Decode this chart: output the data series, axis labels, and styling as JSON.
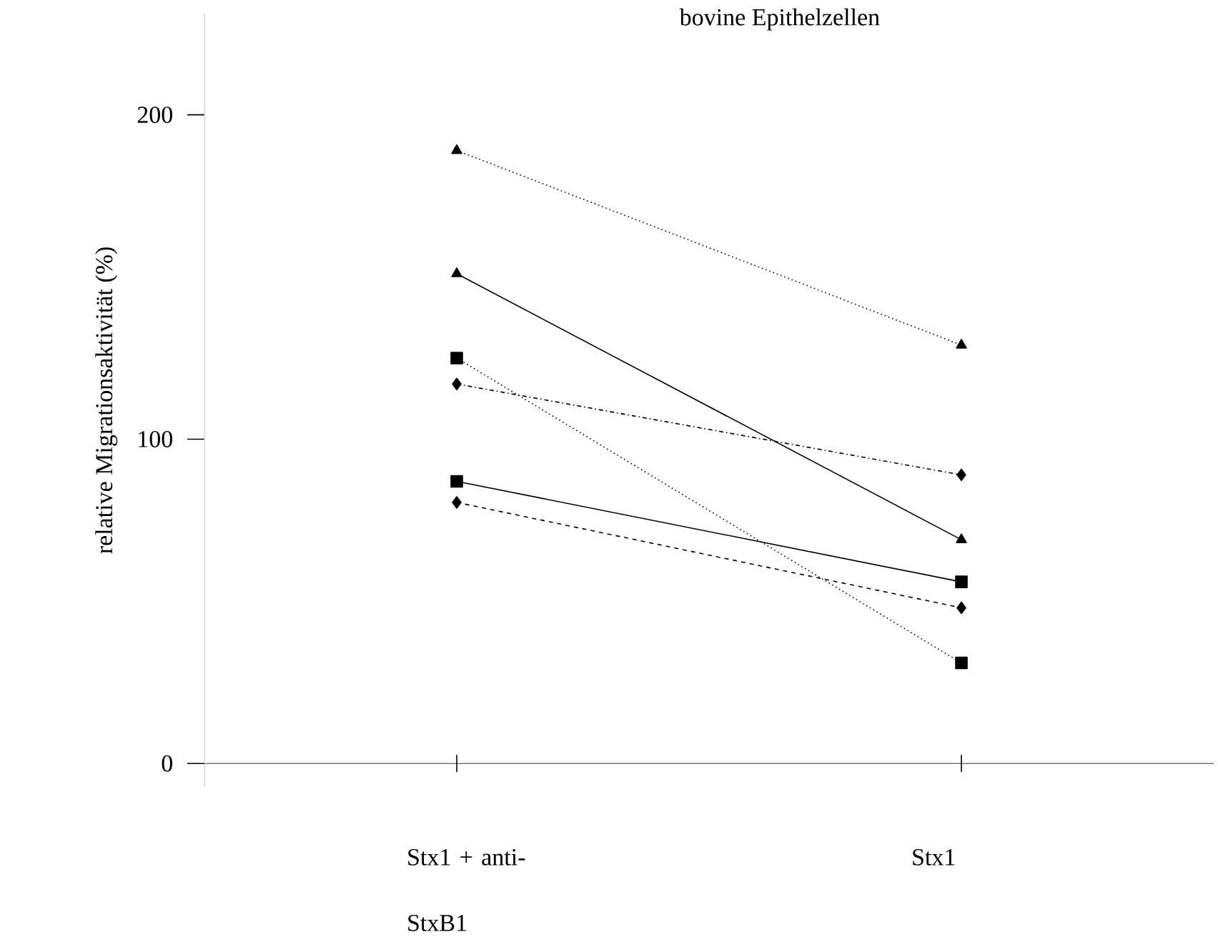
{
  "chart_data": {
    "type": "line",
    "title": "bovine Epithelzellen",
    "ylabel": "relative Migrationsaktivität (%)",
    "categories": [
      "Stx1 + anti-StxB1",
      "Stx1"
    ],
    "ylim": [
      -7,
      231
    ],
    "yticks": [
      0,
      100,
      200
    ],
    "series": [
      {
        "color": "#000000",
        "values": [
          189,
          129
        ],
        "marker": "triangle",
        "line_style": "dotted"
      },
      {
        "color": "#000000",
        "values": [
          151,
          69
        ],
        "marker": "triangle",
        "line_style": "solid"
      },
      {
        "color": "#000000",
        "values": [
          125,
          31
        ],
        "marker": "square",
        "line_style": "dotted"
      },
      {
        "color": "#000000",
        "values": [
          117,
          89
        ],
        "marker": "diamond",
        "line_style": "dashdotted"
      },
      {
        "color": "#000000",
        "values": [
          87,
          56
        ],
        "marker": "square",
        "line_style": "solid"
      },
      {
        "color": "#000000",
        "values": [
          80.5,
          48
        ],
        "marker": "diamond",
        "line_style": "dashed"
      }
    ]
  }
}
